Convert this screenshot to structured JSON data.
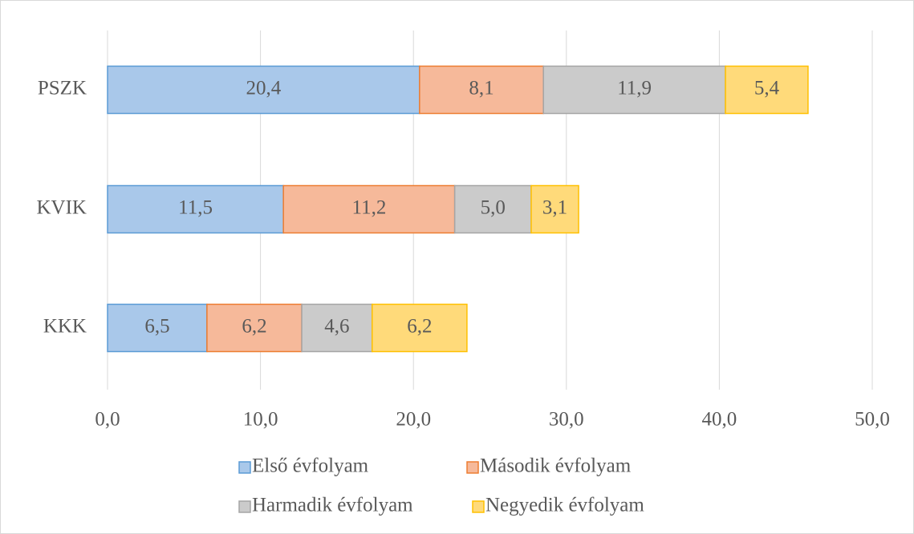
{
  "chart_data": {
    "type": "stacked-barh",
    "categories": [
      "PSZK",
      "KVIK",
      "KKK"
    ],
    "series": [
      {
        "name": "Első évfolyam",
        "color": "#a9c8ea",
        "edge": "#5b9bd5",
        "values": [
          20.4,
          11.5,
          6.5
        ],
        "value_labels": [
          "20,4",
          "11,5",
          "6,5"
        ]
      },
      {
        "name": "Második évfolyam",
        "color": "#f6b99a",
        "edge": "#ed7d31",
        "values": [
          8.1,
          11.2,
          6.2
        ],
        "value_labels": [
          "8,1",
          "11,2",
          "6,2"
        ]
      },
      {
        "name": "Harmadik évfolyam",
        "color": "#cbcbcb",
        "edge": "#a5a5a5",
        "values": [
          11.9,
          5.0,
          4.6
        ],
        "value_labels": [
          "11,9",
          "5,0",
          "4,6"
        ]
      },
      {
        "name": "Negyedik évfolyam",
        "color": "#ffda7a",
        "edge": "#ffc000",
        "values": [
          5.4,
          3.1,
          6.2
        ],
        "value_labels": [
          "5,4",
          "3,1",
          "6,2"
        ]
      }
    ],
    "xlim": [
      0,
      50
    ],
    "xticks": [
      {
        "value": 0,
        "label": "0,0"
      },
      {
        "value": 10,
        "label": "10,0"
      },
      {
        "value": 20,
        "label": "20,0"
      },
      {
        "value": 30,
        "label": "30,0"
      },
      {
        "value": 40,
        "label": "40,0"
      },
      {
        "value": 50,
        "label": "50,0"
      }
    ],
    "grid": true,
    "legend": "bottom"
  }
}
